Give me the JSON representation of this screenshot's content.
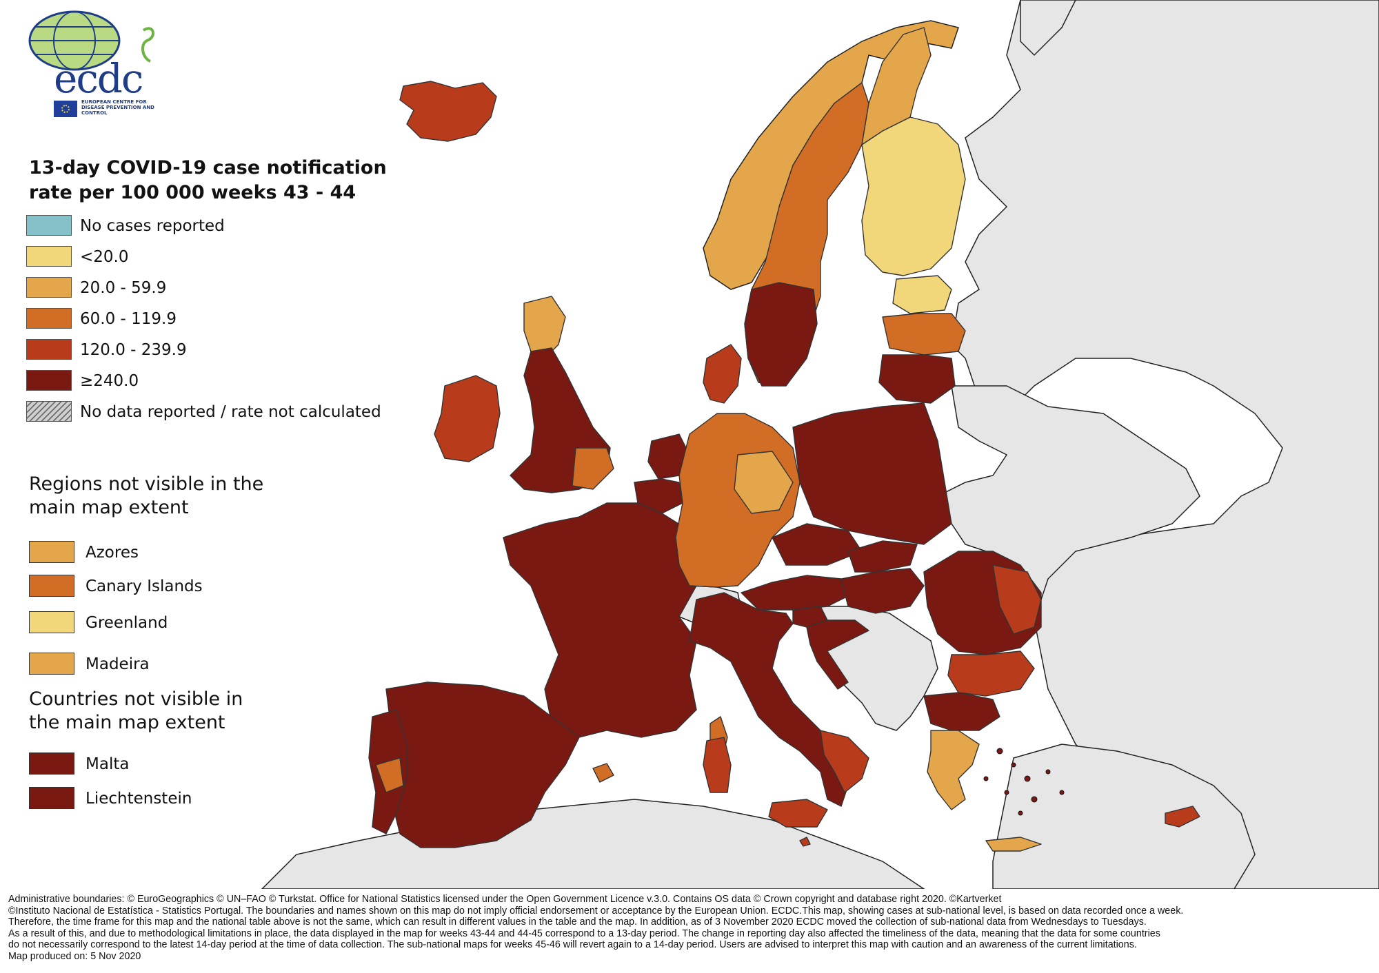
{
  "logo": {
    "text": "ecdc",
    "subtitle": "EUROPEAN CENTRE FOR DISEASE PREVENTION AND CONTROL"
  },
  "title": "13-day COVID-19 case notification rate per 100 000 weeks 43 - 44",
  "colors": {
    "no_cases": "#85c1c9",
    "lt20": "#f2d77a",
    "c20_59": "#e4a64a",
    "c60_119": "#d26d26",
    "c120_239": "#b83c1b",
    "ge240": "#7a1812",
    "non_eu": "#e6e6e6",
    "sea": "#ffffff"
  },
  "legend": [
    {
      "label": "No cases reported",
      "color": "#85c1c9"
    },
    {
      "label": "<20.0",
      "color": "#f2d77a"
    },
    {
      "label": "20.0 - 59.9",
      "color": "#e4a64a"
    },
    {
      "label": "60.0 - 119.9",
      "color": "#d26d26"
    },
    {
      "label": "120.0 - 239.9",
      "color": "#b83c1b"
    },
    {
      "label": "≥240.0",
      "color": "#7a1812"
    },
    {
      "label": "No data reported / rate not calculated",
      "color": "hatched"
    }
  ],
  "regions_heading": "Regions not visible in the main map extent",
  "regions": [
    {
      "label": "Azores",
      "color": "#e4a64a"
    },
    {
      "label": "Canary Islands",
      "color": "#d26d26"
    },
    {
      "label": "Greenland",
      "color": "#f2d77a"
    },
    {
      "label": "Madeira",
      "color": "#e4a64a"
    }
  ],
  "countries_heading": "Countries not visible in the main map extent",
  "countries": [
    {
      "label": "Malta",
      "color": "#7a1812"
    },
    {
      "label": "Liechtenstein",
      "color": "#7a1812"
    }
  ],
  "footer": [
    "Administrative boundaries: © EuroGeographics © UN–FAO © Turkstat. Office for National Statistics licensed under the Open Government Licence v.3.0. Contains OS data © Crown copyright and database right 2020. ©Kartverket",
    "©Instituto Nacional de Estatística - Statistics Portugal. The boundaries and names shown on this map do not imply official endorsement or acceptance by the European Union. ECDC.This map, showing cases at sub-national level, is based on data recorded once a week.",
    "Therefore, the time frame for this map and the national table above is not the same, which can result in different values in the table and the map. In addition, as of 3 November 2020 ECDC moved the collection of sub-national data from Wednesdays to Tuesdays.",
    "As a result of this, and due to methodological limitations in place, the data displayed in the map for weeks 43-44 and 44-45 correspond to a 13-day period. The change in reporting day also affected the timeliness of the data, meaning that the data for some countries",
    "do not necessarily correspond to the latest 14-day period at the time of data collection. The sub-national maps for weeks 45-46 will revert again to a 14-day period. Users are advised to interpret this map with caution and an awareness of the current limitations.",
    "Map produced on: 5 Nov 2020"
  ]
}
